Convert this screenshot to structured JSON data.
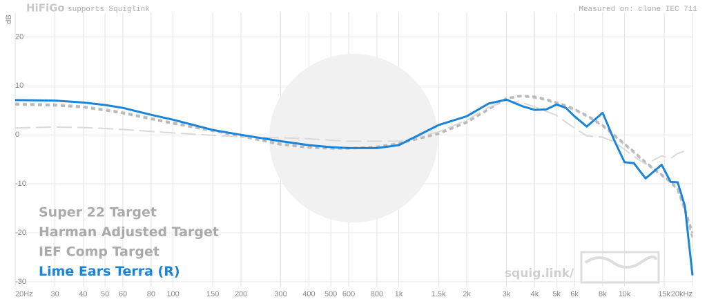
{
  "brand": "HiFiGo",
  "tagline": "supports Squiglink",
  "measured_on": "Measured on: clone IEC 711",
  "watermark": "squig.link/",
  "chart_data": {
    "type": "line",
    "xscale": "log",
    "ylabel": "dB",
    "grid": true,
    "legend": "lower left",
    "x": [
      20,
      30,
      40,
      50,
      60,
      80,
      100,
      150,
      200,
      300,
      400,
      500,
      600,
      800,
      1000,
      1500,
      2000,
      2500,
      3000,
      3500,
      4000,
      4500,
      5000,
      5500,
      6000,
      6800,
      8000,
      9000,
      10000,
      11000,
      12400,
      14600,
      16000,
      17200,
      18500,
      20000
    ],
    "xlim": [
      20,
      20000
    ],
    "xticks": [
      {
        "value": 20,
        "label": "20Hz"
      },
      30,
      40,
      50,
      60,
      80,
      100,
      150,
      200,
      300,
      400,
      500,
      600,
      800,
      {
        "value": 1000,
        "label": "1k"
      },
      {
        "value": 1500,
        "label": "1.5k"
      },
      {
        "value": 2000,
        "label": "2k"
      },
      {
        "value": 3000,
        "label": "3k"
      },
      {
        "value": 4000,
        "label": "4k"
      },
      {
        "value": 5000,
        "label": "5k"
      },
      {
        "value": 6000,
        "label": "6k"
      },
      {
        "value": 8000,
        "label": "8k"
      },
      {
        "value": 10000,
        "label": "10k"
      },
      {
        "value": 15000,
        "label": "15k"
      },
      {
        "value": 20000,
        "label": "20kHz"
      }
    ],
    "ylim": [
      -31,
      25
    ],
    "yticks": [
      20,
      10,
      0,
      -10,
      -20,
      -30
    ],
    "series": [
      {
        "name": "Super 22 Target",
        "color": "#c4c4c4",
        "values": [
          6.4,
          6.2,
          5.8,
          5.2,
          4.6,
          3.4,
          2.5,
          1,
          -0.1,
          -1.8,
          -2.4,
          -2.6,
          -2.7,
          -2.4,
          -1.7,
          0.4,
          2.7,
          5.3,
          7.4,
          7.9,
          7.6,
          7.1,
          6.4,
          5.8,
          5.1,
          3.8,
          1.8,
          -0.2,
          -2,
          -3.6,
          -5.8,
          -8.3,
          -9.7,
          -11.3,
          -15.5,
          -21
        ]
      },
      {
        "name": "Harman Adjusted Target",
        "color": "#b9b9b9",
        "values": [
          6.2,
          6,
          5.6,
          5,
          4.4,
          3.2,
          2.3,
          0.8,
          -0.3,
          -2,
          -2.6,
          -2.8,
          -2.8,
          -2.5,
          -1.8,
          0.2,
          2.5,
          5.2,
          7.5,
          8,
          7.8,
          7.3,
          6.6,
          6,
          5.3,
          4,
          2,
          0,
          -1.8,
          -3.4,
          -5.6,
          -8.1,
          -9.5,
          -11,
          -15,
          -20
        ]
      },
      {
        "name": "IEF Comp Target",
        "color": "#d9d9d9",
        "values": [
          1.4,
          1.6,
          1.5,
          1.3,
          1.1,
          0.7,
          0.4,
          -0.1,
          -0.4,
          -0.6,
          -0.8,
          -1.1,
          -1.3,
          -1.3,
          -1.3,
          0.6,
          3,
          5.6,
          7,
          6.6,
          5.7,
          4.8,
          4,
          2.6,
          1.4,
          -0.2,
          -0.5,
          -1.4,
          -3,
          -4.4,
          -6,
          -4.3,
          -4.8,
          -3.8,
          -3.3,
          null
        ]
      },
      {
        "name": "Lime Ears Terra (R)",
        "color": "#1a84d9",
        "values": [
          7.1,
          7,
          6.6,
          6.1,
          5.5,
          4.1,
          3.1,
          1,
          0,
          -1.3,
          -2.1,
          -2.5,
          -2.7,
          -2.7,
          -2.1,
          2,
          3.8,
          6.4,
          7.2,
          5.9,
          5.1,
          5.2,
          6.2,
          5.5,
          3.8,
          1.7,
          4.5,
          -1.1,
          -5.6,
          -5.8,
          -8.9,
          -6.1,
          -9.6,
          -9.7,
          -14.5,
          -28.7
        ]
      }
    ]
  }
}
